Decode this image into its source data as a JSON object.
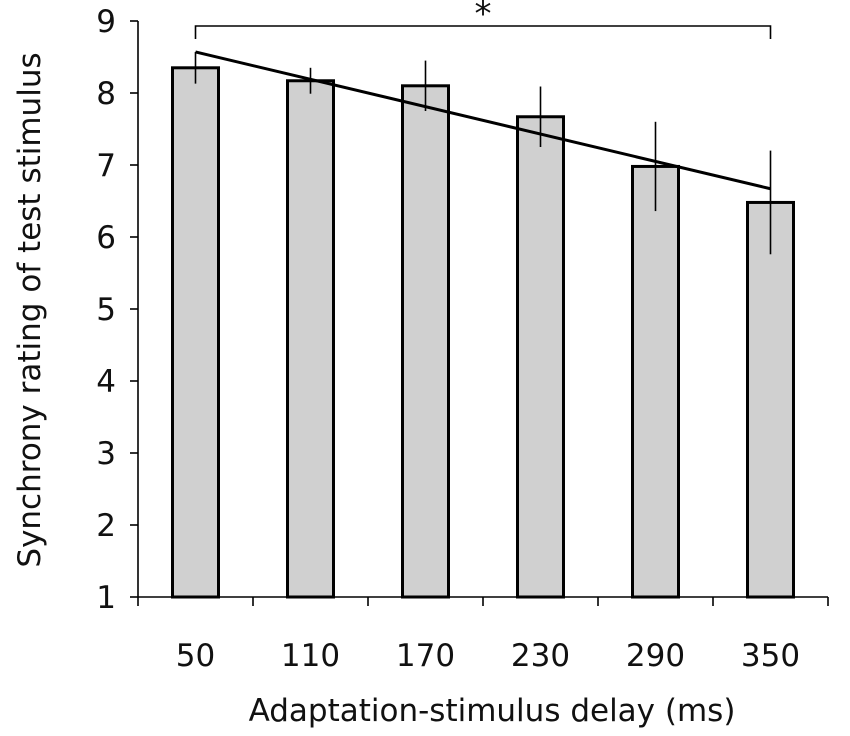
{
  "chart_data": {
    "type": "bar",
    "categories": [
      "50",
      "110",
      "170",
      "230",
      "290",
      "350"
    ],
    "values": [
      8.35,
      8.17,
      8.1,
      7.67,
      6.98,
      6.48
    ],
    "error": [
      0.22,
      0.18,
      0.35,
      0.42,
      0.62,
      0.72
    ],
    "xlabel": "Adaptation-stimulus delay (ms)",
    "ylabel": "Synchrony rating of test stimulus",
    "ylim": [
      1,
      9
    ],
    "yticks": [
      1,
      2,
      3,
      4,
      5,
      6,
      7,
      8,
      9
    ],
    "trend_line": {
      "from": {
        "x": "50",
        "y": 8.57
      },
      "to": {
        "x": "350",
        "y": 6.67
      }
    },
    "significance": {
      "label": "*",
      "from": "50",
      "to": "350"
    },
    "grid": false,
    "colors": {
      "bar_fill": "#d0d0d0",
      "bar_stroke": "#000000",
      "line": "#000000"
    }
  }
}
